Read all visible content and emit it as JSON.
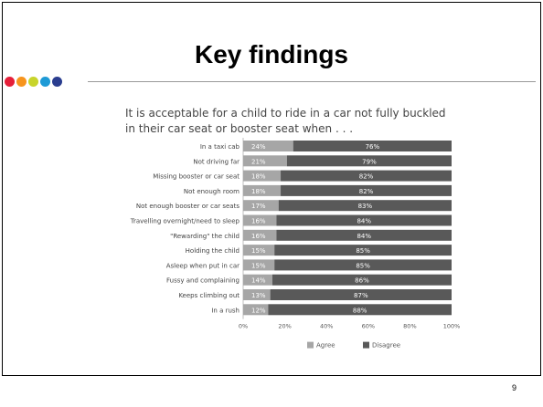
{
  "slide": {
    "title": "Key findings",
    "page_number": "9",
    "dot_colors": [
      "#e51f39",
      "#f7941d",
      "#c8d42b",
      "#1e9ad6",
      "#2a3d8f"
    ]
  },
  "chart_data": {
    "type": "bar",
    "orientation": "horizontal",
    "stacked": true,
    "title": "It is acceptable for a child to ride in a car not fully buckled in their car seat or booster seat when . . .",
    "categories": [
      "In a taxi cab",
      "Not driving far",
      "Missing booster or car seat",
      "Not enough room",
      "Not enough booster or car seats",
      "Travelling overnight/need to sleep",
      "\"Rewarding\" the child",
      "Holding the child",
      "Asleep when put in car",
      "Fussy and complaining",
      "Keeps climbing out",
      "In a rush"
    ],
    "series": [
      {
        "name": "Agree",
        "color": "#a6a6a6",
        "values": [
          24,
          21,
          18,
          18,
          17,
          16,
          16,
          15,
          15,
          14,
          13,
          12
        ]
      },
      {
        "name": "Disagree",
        "color": "#595959",
        "values": [
          76,
          79,
          82,
          82,
          83,
          84,
          84,
          85,
          85,
          86,
          87,
          88
        ]
      }
    ],
    "xlim": [
      0,
      100
    ],
    "xticks": [
      "0%",
      "20%",
      "40%",
      "60%",
      "80%",
      "100%"
    ],
    "legend": "bottom"
  }
}
